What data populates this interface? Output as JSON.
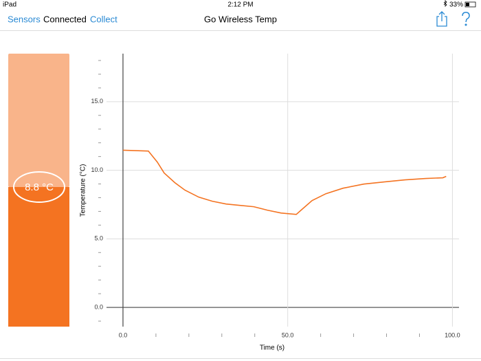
{
  "status_bar": {
    "device": "iPad",
    "time": "2:12 PM",
    "battery": "33%"
  },
  "nav": {
    "items": [
      "Sensors",
      "Connected",
      "Collect"
    ],
    "title": "Go Wireless Temp"
  },
  "meter": {
    "reading": "8.8 °C"
  },
  "chart_data": {
    "type": "line",
    "xlabel": "Time (s)",
    "ylabel": "Temperature (°C)",
    "color": "#f47321",
    "x": [
      0,
      7.7,
      10.4,
      12.5,
      15.7,
      18.8,
      23,
      27.1,
      31.3,
      35.5,
      39.7,
      43.8,
      48,
      52.6,
      54.3,
      57.4,
      61.6,
      66.8,
      73.1,
      79.3,
      85.6,
      91.9,
      97.1,
      98.1
    ],
    "values": [
      11.46,
      11.4,
      10.6,
      9.8,
      9.1,
      8.55,
      8.04,
      7.74,
      7.54,
      7.44,
      7.34,
      7.09,
      6.88,
      6.78,
      7.14,
      7.79,
      8.29,
      8.69,
      8.99,
      9.15,
      9.3,
      9.4,
      9.45,
      9.55
    ],
    "xlim": [
      -5,
      102
    ],
    "ylim": [
      -1.4,
      18.5
    ],
    "xticks": [
      {
        "value": 0,
        "label": "0.0"
      },
      {
        "value": 50,
        "label": "50.0"
      },
      {
        "value": 100,
        "label": "100.0"
      }
    ],
    "yticks": [
      {
        "value": 0,
        "label": "0.0"
      },
      {
        "value": 5,
        "label": "5.0"
      },
      {
        "value": 10,
        "label": "10.0"
      },
      {
        "value": 15,
        "label": "15.0"
      }
    ],
    "xminorticks": [
      10,
      20,
      30,
      40,
      60,
      70,
      80,
      90
    ],
    "yminorticks": [
      -1,
      1,
      2,
      3,
      4,
      6,
      7,
      8,
      9,
      11,
      12,
      13,
      14,
      16,
      17,
      18
    ],
    "grid": true
  }
}
